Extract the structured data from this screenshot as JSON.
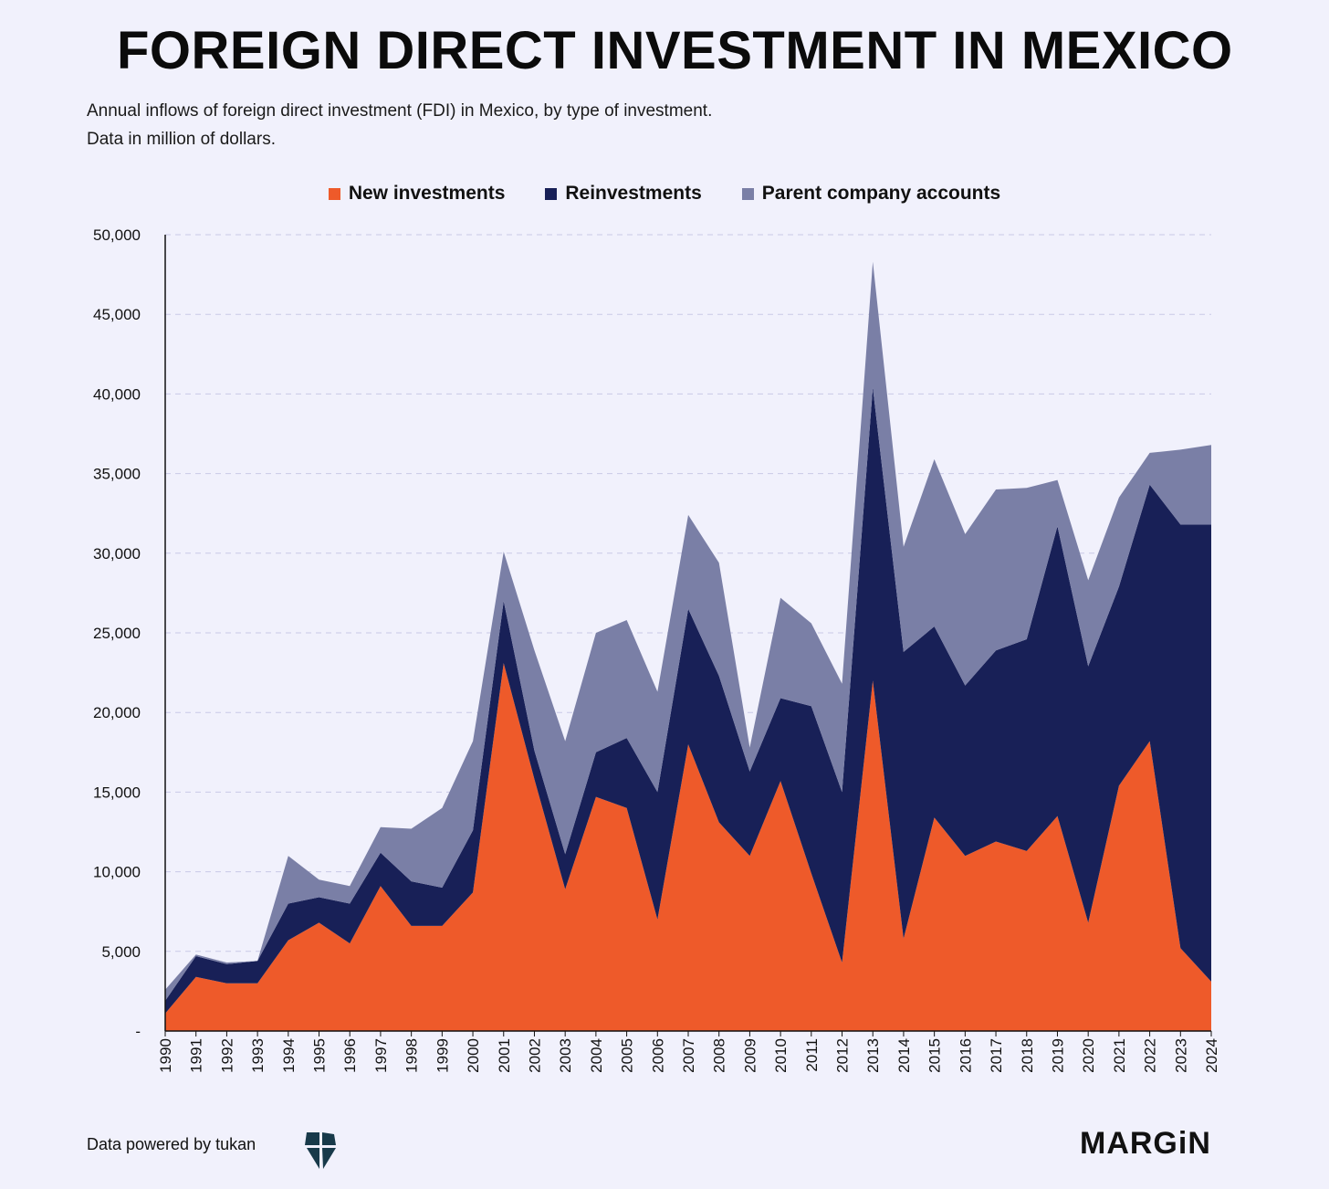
{
  "title": "FOREIGN DIRECT INVESTMENT IN MEXICO",
  "subtitle_line1": "Annual inflows of foreign direct investment (FDI) in Mexico, by type of investment.",
  "subtitle_line2": "Data in million of dollars.",
  "footer": {
    "source": "Data powered by tukan",
    "brand": "MARGiN"
  },
  "colors": {
    "new_investments": "#ee5a2a",
    "reinvestments": "#182057",
    "parent_company_accounts": "#7a7fa6",
    "gridline": "#c9c9e6",
    "background": "#f1f1fc"
  },
  "chart_data": {
    "type": "area",
    "stacked": true,
    "title": "FOREIGN DIRECT INVESTMENT IN MEXICO",
    "ylabel": "Million of dollars",
    "ylim": [
      0,
      50000
    ],
    "yticks": [
      0,
      5000,
      10000,
      15000,
      20000,
      25000,
      30000,
      35000,
      40000,
      45000,
      50000
    ],
    "ytick_labels": [
      "-",
      "5,000",
      "10,000",
      "15,000",
      "20,000",
      "25,000",
      "30,000",
      "35,000",
      "40,000",
      "45,000",
      "50,000"
    ],
    "grid": true,
    "legend_position": "top-center",
    "categories": [
      "1990",
      "1991",
      "1992",
      "1993",
      "1994",
      "1995",
      "1996",
      "1997",
      "1998",
      "1999",
      "2000",
      "2001",
      "2002",
      "2003",
      "2004",
      "2005",
      "2006",
      "2007",
      "2008",
      "2009",
      "2010",
      "2011",
      "2012",
      "2013",
      "2014",
      "2015",
      "2016",
      "2017",
      "2018",
      "2019",
      "2020",
      "2021",
      "2022",
      "2023",
      "2024"
    ],
    "series": [
      {
        "name": "New investments",
        "color": "#ee5a2a",
        "values": [
          1100,
          3400,
          3000,
          3000,
          5700,
          6800,
          5500,
          9100,
          6600,
          6600,
          8700,
          23100,
          15800,
          8900,
          14700,
          14000,
          7000,
          18000,
          13100,
          11000,
          15700,
          9900,
          4300,
          22000,
          5800,
          13400,
          11000,
          11900,
          11300,
          13500,
          6800,
          15400,
          18200,
          5200,
          3100
        ]
      },
      {
        "name": "Reinvestments",
        "color": "#182057",
        "values": [
          800,
          1300,
          1200,
          1400,
          2300,
          1600,
          2500,
          2100,
          2800,
          2400,
          3900,
          3900,
          1800,
          2200,
          2800,
          4400,
          8000,
          8500,
          9200,
          5300,
          5200,
          10500,
          10700,
          18400,
          18000,
          12000,
          10700,
          12000,
          13300,
          18200,
          16100,
          12500,
          16100,
          26600,
          28700
        ]
      },
      {
        "name": "Parent company accounts",
        "color": "#7a7fa6",
        "values": [
          700,
          100,
          100,
          0,
          3000,
          1100,
          1100,
          1600,
          3300,
          5000,
          5600,
          3100,
          6300,
          7100,
          7500,
          7400,
          6300,
          5900,
          7100,
          1500,
          6300,
          5200,
          6800,
          7900,
          6600,
          10500,
          9500,
          10100,
          9500,
          2900,
          5400,
          5600,
          2000,
          4700,
          5000
        ]
      }
    ]
  }
}
